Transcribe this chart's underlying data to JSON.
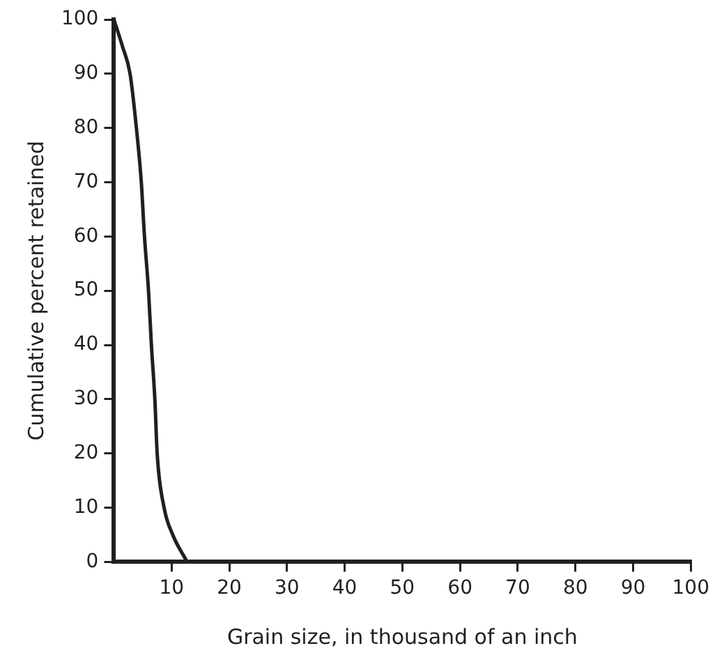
{
  "chart_data": {
    "type": "line",
    "xlabel": "Grain size, in thousand of an inch",
    "ylabel": "Cumulative percent retained",
    "x": [
      0,
      1.5,
      2.8,
      3.9,
      4.75,
      5.3,
      6,
      6.5,
      7.1,
      7.5,
      8.7,
      10.2,
      12.7
    ],
    "series": [
      {
        "color": "#231f20",
        "values": [
          100,
          95,
          90,
          80,
          70,
          60,
          50,
          40,
          30,
          20,
          10,
          5,
          0
        ]
      }
    ],
    "xlim": [
      0,
      100
    ],
    "xticks": [
      10,
      20,
      30,
      40,
      50,
      60,
      70,
      80,
      90,
      100
    ],
    "ylim": [
      0,
      100
    ],
    "yticks": [
      0,
      10,
      20,
      30,
      40,
      50,
      60,
      70,
      80,
      90,
      100
    ],
    "grid": false,
    "legend": false,
    "marker": "none",
    "line_style": "solid"
  }
}
